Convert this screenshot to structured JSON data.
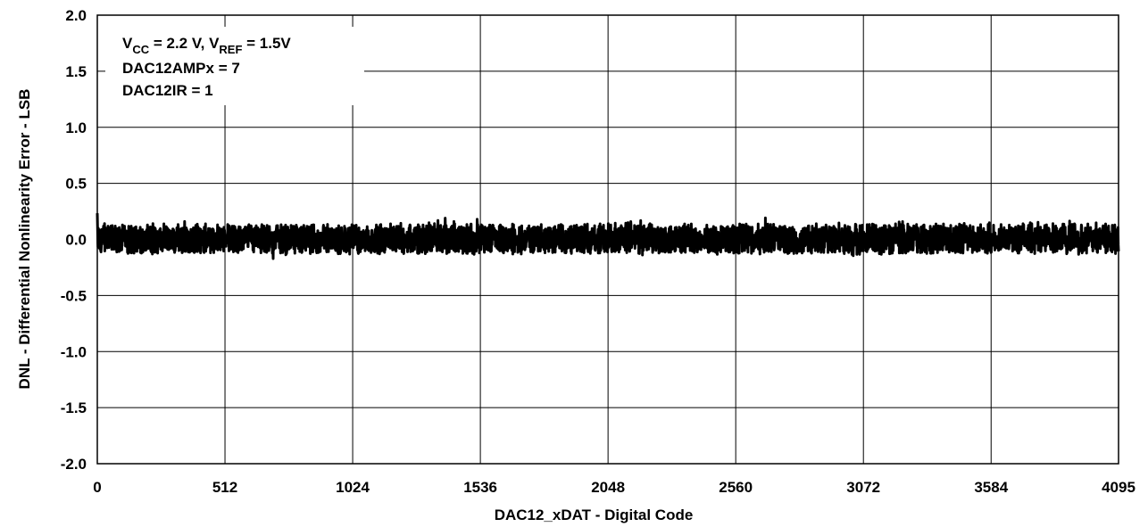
{
  "chart_data": {
    "type": "line",
    "title": "",
    "xlabel": "DAC12_xDAT -  Digital Code",
    "ylabel": "DNL -  Differential Nonlinearity Error -  LSB",
    "xlim": [
      0,
      4095
    ],
    "ylim": [
      -2.0,
      2.0
    ],
    "x_ticks": [
      0,
      512,
      1024,
      1536,
      2048,
      2560,
      3072,
      3584,
      4095
    ],
    "x_tick_labels": [
      "0",
      "512",
      "1024",
      "1536",
      "2048",
      "2560",
      "3072",
      "3584",
      "4095"
    ],
    "y_ticks": [
      2.0,
      1.5,
      1.0,
      0.5,
      0.0,
      -0.5,
      -1.0,
      -1.5,
      -2.0
    ],
    "y_tick_labels": [
      "2.0",
      "1.5",
      "1.0",
      "0.5",
      "0.0",
      "-0.5",
      "-1.0",
      "-1.5",
      "-2.0"
    ],
    "grid": true,
    "legend": "none",
    "line_color": "#000000",
    "annotations": {
      "line1": {
        "v1": "V",
        "s1": "CC",
        "mid": " = 2.2 V, V",
        "s2": "REF",
        "end": " = 1.5V"
      },
      "line2": "DAC12AMPx = 7",
      "line3": "DAC12IR = 1"
    },
    "series": [
      {
        "x": [
          0,
          40,
          80,
          120,
          160,
          200,
          240,
          280,
          320,
          360,
          400,
          440,
          480,
          520,
          560,
          600,
          640,
          680,
          720,
          760,
          800,
          840,
          880,
          920,
          960,
          1000,
          1040,
          1080,
          1120,
          1160,
          1200,
          1240,
          1280,
          1320,
          1360,
          1400,
          1440,
          1480,
          1520,
          1560,
          1600,
          1640,
          1680,
          1720,
          1760,
          1800,
          1840,
          1880,
          1920,
          1960,
          2000,
          2040,
          2080,
          2120,
          2160,
          2200,
          2240,
          2280,
          2320,
          2360,
          2400,
          2440,
          2480,
          2520,
          2560,
          2600,
          2640,
          2680,
          2720,
          2760,
          2800,
          2840,
          2880,
          2920,
          2960,
          3000,
          3040,
          3080,
          3120,
          3160,
          3200,
          3240,
          3280,
          3320,
          3360,
          3400,
          3440,
          3480,
          3520,
          3560,
          3600,
          3640,
          3680,
          3720,
          3760,
          3800,
          3840,
          3880,
          3920,
          3960,
          4000,
          4040,
          4095
        ],
        "y_max": [
          0.25,
          0.12,
          0.15,
          0.18,
          0.17,
          0.15,
          0.2,
          0.14,
          0.16,
          0.18,
          0.15,
          0.25,
          0.16,
          0.14,
          0.15,
          0.14,
          0.13,
          0.14,
          0.23,
          0.13,
          0.15,
          0.14,
          0.13,
          0.15,
          0.12,
          0.14,
          0.18,
          0.13,
          0.15,
          0.17,
          0.2,
          0.18,
          0.17,
          0.15,
          0.16,
          0.22,
          0.16,
          0.15,
          0.2,
          0.15,
          0.14,
          0.16,
          0.14,
          0.13,
          0.15,
          0.13,
          0.14,
          0.16,
          0.13,
          0.15,
          0.14,
          0.14,
          0.27,
          0.15,
          0.2,
          0.14,
          0.15,
          0.13,
          0.16,
          0.15,
          0.14,
          0.15,
          0.13,
          0.14,
          0.15,
          0.14,
          0.13,
          0.2,
          0.14,
          0.15,
          0.13,
          0.14,
          0.15,
          0.14,
          0.16,
          0.15,
          0.14,
          0.13,
          0.16,
          0.14,
          0.15,
          0.17,
          0.14,
          0.13,
          0.14,
          0.15,
          0.13,
          0.16,
          0.14,
          0.2,
          0.15,
          0.14,
          0.13,
          0.15,
          0.16,
          0.14,
          0.18,
          0.19,
          0.15,
          0.16,
          0.18,
          0.17,
          0.15
        ],
        "y_min": [
          -0.12,
          -0.1,
          -0.12,
          -0.13,
          -0.12,
          -0.15,
          -0.13,
          -0.12,
          -0.13,
          -0.12,
          -0.12,
          -0.13,
          -0.14,
          -0.12,
          -0.13,
          -0.12,
          -0.12,
          -0.13,
          -0.22,
          -0.14,
          -0.13,
          -0.12,
          -0.14,
          -0.12,
          -0.13,
          -0.14,
          -0.13,
          -0.15,
          -0.13,
          -0.14,
          -0.13,
          -0.25,
          -0.27,
          -0.14,
          -0.13,
          -0.13,
          -0.12,
          -0.15,
          -0.13,
          -0.12,
          -0.12,
          -0.13,
          -0.14,
          -0.13,
          -0.12,
          -0.17,
          -0.14,
          -0.12,
          -0.13,
          -0.14,
          -0.12,
          -0.13,
          -0.14,
          -0.13,
          -0.12,
          -0.15,
          -0.13,
          -0.12,
          -0.14,
          -0.13,
          -0.12,
          -0.13,
          -0.14,
          -0.12,
          -0.13,
          -0.12,
          -0.15,
          -0.13,
          -0.12,
          -0.14,
          -0.13,
          -0.12,
          -0.13,
          -0.14,
          -0.12,
          -0.13,
          -0.15,
          -0.12,
          -0.13,
          -0.14,
          -0.12,
          -0.13,
          -0.12,
          -0.14,
          -0.13,
          -0.12,
          -0.13,
          -0.12,
          -0.14,
          -0.13,
          -0.12,
          -0.13,
          -0.14,
          -0.12,
          -0.13,
          -0.14,
          -0.12,
          -0.13,
          -0.14,
          -0.13,
          -0.12,
          -0.13,
          -0.14
        ]
      }
    ]
  }
}
